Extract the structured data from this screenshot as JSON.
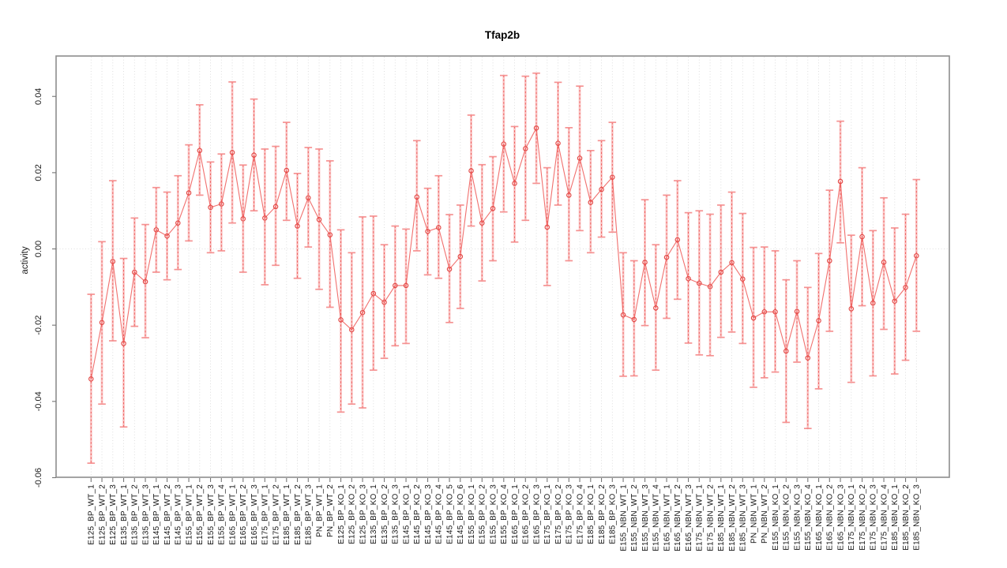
{
  "page": {
    "background": "#ffffff"
  },
  "chart_data": {
    "type": "line",
    "subtype": "points-with-error-bars",
    "title": "Tfap2b",
    "xlabel": "",
    "ylabel": "activity",
    "legend": "none",
    "grid": "dotted vertical line at every category; dotted horizontal line at zero",
    "ylim": [
      -0.0599,
      0.0506
    ],
    "ytick_values": [
      0.04,
      0.02,
      0.0,
      -0.02,
      -0.04,
      -0.06
    ],
    "ytick_labels": [
      "0.04",
      "0.02",
      "0.00",
      "-0.02",
      "-0.04",
      "-0.06"
    ],
    "categories": [
      "E125_BP_WT_1",
      "E125_BP_WT_2",
      "E125_BP_WT_3",
      "E135_BP_WT_1",
      "E135_BP_WT_2",
      "E135_BP_WT_3",
      "E145_BP_WT_1",
      "E145_BP_WT_2",
      "E145_BP_WT_3",
      "E155_BP_WT_1",
      "E155_BP_WT_2",
      "E155_BP_WT_3",
      "E155_BP_WT_4",
      "E165_BP_WT_1",
      "E165_BP_WT_2",
      "E165_BP_WT_3",
      "E175_BP_WT_1",
      "E175_BP_WT_2",
      "E185_BP_WT_1",
      "E185_BP_WT_2",
      "E185_BP_WT_3",
      "PN_BP_WT_1",
      "PN_BP_WT_2",
      "E125_BP_KO_1",
      "E125_BP_KO_2",
      "E125_BP_KO_3",
      "E135_BP_KO_1",
      "E135_BP_KO_2",
      "E135_BP_KO_3",
      "E145_BP_KO_1",
      "E145_BP_KO_2",
      "E145_BP_KO_3",
      "E145_BP_KO_4",
      "E145_BP_KO_5",
      "E145_BP_KO_6",
      "E155_BP_KO_1",
      "E155_BP_KO_2",
      "E155_BP_KO_3",
      "E155_BP_KO_4",
      "E165_BP_KO_1",
      "E165_BP_KO_2",
      "E165_BP_KO_3",
      "E175_BP_KO_1",
      "E175_BP_KO_2",
      "E175_BP_KO_3",
      "E175_BP_KO_4",
      "E185_BP_KO_1",
      "E185_BP_KO_2",
      "E185_BP_KO_3",
      "E155_NBN_WT_1",
      "E155_NBN_WT_2",
      "E155_NBN_WT_3",
      "E155_NBN_WT_4",
      "E165_NBN_WT_1",
      "E165_NBN_WT_2",
      "E165_NBN_WT_3",
      "E175_NBN_WT_1",
      "E175_NBN_WT_2",
      "E185_NBN_WT_1",
      "E185_NBN_WT_2",
      "E185_NBN_WT_3",
      "PN_NBN_WT_1",
      "PN_NBN_WT_2",
      "E155_NBN_KO_1",
      "E155_NBN_KO_2",
      "E155_NBN_KO_3",
      "E155_NBN_KO_4",
      "E165_NBN_KO_1",
      "E165_NBN_KO_2",
      "E165_NBN_KO_3",
      "E175_NBN_KO_1",
      "E175_NBN_KO_2",
      "E175_NBN_KO_3",
      "E175_NBN_KO_4",
      "E185_NBN_KO_1",
      "E185_NBN_KO_2",
      "E185_NBN_KO_3"
    ],
    "series": [
      {
        "name": "activity",
        "values": [
          -0.0341,
          -0.0193,
          -0.0033,
          -0.0248,
          -0.0061,
          -0.0086,
          0.005,
          0.0034,
          0.0068,
          0.0147,
          0.0258,
          0.0109,
          0.0118,
          0.0253,
          0.0079,
          0.0246,
          0.0081,
          0.0111,
          0.0206,
          0.006,
          0.0134,
          0.0077,
          0.0037,
          -0.0186,
          -0.0212,
          -0.0167,
          -0.0117,
          -0.014,
          -0.0096,
          -0.0096,
          0.0136,
          0.0046,
          0.0056,
          -0.0053,
          -0.002,
          0.0205,
          0.0068,
          0.0106,
          0.0275,
          0.0172,
          0.0263,
          0.0317,
          0.0057,
          0.0277,
          0.0141,
          0.0238,
          0.0122,
          0.0156,
          0.0188,
          -0.0173,
          -0.0185,
          -0.0035,
          -0.0155,
          -0.0022,
          0.0024,
          -0.0078,
          -0.009,
          -0.0099,
          -0.0061,
          -0.0036,
          -0.0079,
          -0.0181,
          -0.0165,
          -0.0165,
          -0.0268,
          -0.0164,
          -0.0286,
          -0.0188,
          -0.0031,
          0.0177,
          -0.0157,
          0.0032,
          -0.0142,
          -0.0035,
          -0.0137,
          -0.0101,
          -0.0018
        ],
        "ci_low": [
          -0.0562,
          -0.0407,
          -0.0241,
          -0.0467,
          -0.0203,
          -0.0233,
          -0.0061,
          -0.0081,
          -0.0054,
          0.0021,
          0.0141,
          -0.001,
          -0.0005,
          0.0068,
          -0.0061,
          0.01,
          -0.0094,
          -0.0043,
          0.0075,
          -0.0077,
          0.0005,
          -0.0106,
          -0.0153,
          -0.0428,
          -0.0407,
          -0.0417,
          -0.0318,
          -0.0287,
          -0.0254,
          -0.0248,
          -0.0005,
          -0.0068,
          -0.0077,
          -0.0193,
          -0.0156,
          0.006,
          -0.0084,
          -0.0031,
          0.0097,
          0.0018,
          0.0075,
          0.0172,
          -0.0096,
          0.0115,
          -0.0031,
          0.0048,
          -0.001,
          0.0031,
          0.0044,
          -0.0334,
          -0.0333,
          -0.0201,
          -0.0318,
          -0.0182,
          -0.0132,
          -0.0247,
          -0.0278,
          -0.028,
          -0.0232,
          -0.0218,
          -0.0248,
          -0.0363,
          -0.0338,
          -0.0323,
          -0.0455,
          -0.0297,
          -0.0471,
          -0.0367,
          -0.0216,
          0.0016,
          -0.035,
          -0.0149,
          -0.0333,
          -0.0211,
          -0.0328,
          -0.0292,
          -0.0216
        ],
        "ci_high": [
          -0.0119,
          0.0019,
          0.0179,
          -0.0025,
          0.0081,
          0.0064,
          0.0161,
          0.0149,
          0.0192,
          0.0273,
          0.0378,
          0.0228,
          0.0249,
          0.0438,
          0.022,
          0.0393,
          0.0262,
          0.0269,
          0.0332,
          0.0198,
          0.0266,
          0.0262,
          0.0231,
          0.005,
          -0.001,
          0.0084,
          0.0086,
          0.0011,
          0.006,
          0.0052,
          0.0284,
          0.0159,
          0.0192,
          0.009,
          0.0115,
          0.0351,
          0.0221,
          0.0242,
          0.0455,
          0.0321,
          0.0453,
          0.0461,
          0.0213,
          0.0437,
          0.0318,
          0.0427,
          0.0258,
          0.0284,
          0.0332,
          -0.001,
          -0.0031,
          0.0129,
          0.0011,
          0.0141,
          0.0179,
          0.0095,
          0.01,
          0.0091,
          0.0115,
          0.0149,
          0.0093,
          0.0004,
          0.0005,
          -0.0005,
          -0.0081,
          -0.0031,
          -0.0101,
          -0.0012,
          0.0154,
          0.0335,
          0.0036,
          0.0213,
          0.0048,
          0.0134,
          0.0055,
          0.0091,
          0.0182
        ]
      }
    ],
    "colors": {
      "point_stroke": "#e34a47",
      "series_line": "#ee5755",
      "error_band": "#f89898",
      "error_dash": "#ec4e4b",
      "error_cap": "#f48c8c",
      "grid": "#dadada",
      "box": "#8d8d8d",
      "tick": "#757575",
      "text": "#111111"
    }
  }
}
